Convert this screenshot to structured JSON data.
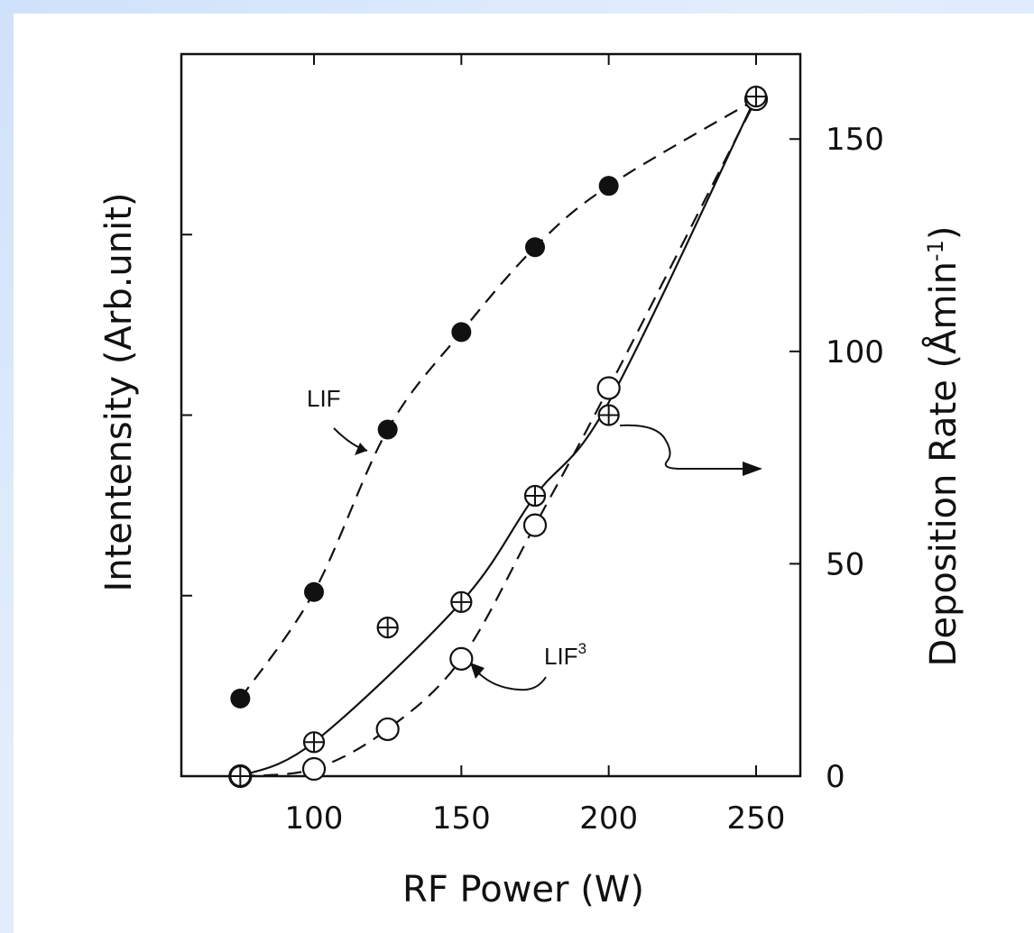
{
  "colors": {
    "ink": "#111111",
    "background": "#cfe2fb",
    "panel": "#ffffff"
  },
  "chart_data": {
    "type": "scatter",
    "xlabel": "RF Power (W)",
    "ylabel_left": "Intentensity (Arb.unit)",
    "ylabel_right": "Deposition Rate (Åmin⁻¹)",
    "xlim": [
      55,
      265
    ],
    "x_ticks": [
      100,
      150,
      200,
      250
    ],
    "left_ylim": [
      0,
      4
    ],
    "left_ticks": [
      1,
      2,
      3
    ],
    "right_ylim": [
      0,
      170
    ],
    "right_ticks": [
      0,
      50,
      100,
      150
    ],
    "grid": false,
    "series": [
      {
        "name": "LIF",
        "axis": "left",
        "marker": "filled-circle",
        "x": [
          75,
          100,
          125,
          150,
          175,
          200
        ],
        "y": [
          0.43,
          1.02,
          1.92,
          2.46,
          2.93,
          3.27
        ]
      },
      {
        "name": "LIF³",
        "axis": "left",
        "marker": "open-circle",
        "x": [
          75,
          100,
          125,
          150,
          175,
          200,
          250
        ],
        "y": [
          0.0,
          0.04,
          0.26,
          0.65,
          1.39,
          2.15,
          3.75
        ]
      },
      {
        "axis": "right",
        "marker": "crossed-circle",
        "x": [
          75,
          100,
          125,
          150,
          175,
          200,
          250
        ],
        "y": [
          0,
          8,
          35,
          41,
          66,
          85,
          160
        ]
      }
    ],
    "annotations": [
      {
        "text": "LIF",
        "target": "LIF"
      },
      {
        "text": "LIF³",
        "target": "LIF³"
      }
    ]
  }
}
